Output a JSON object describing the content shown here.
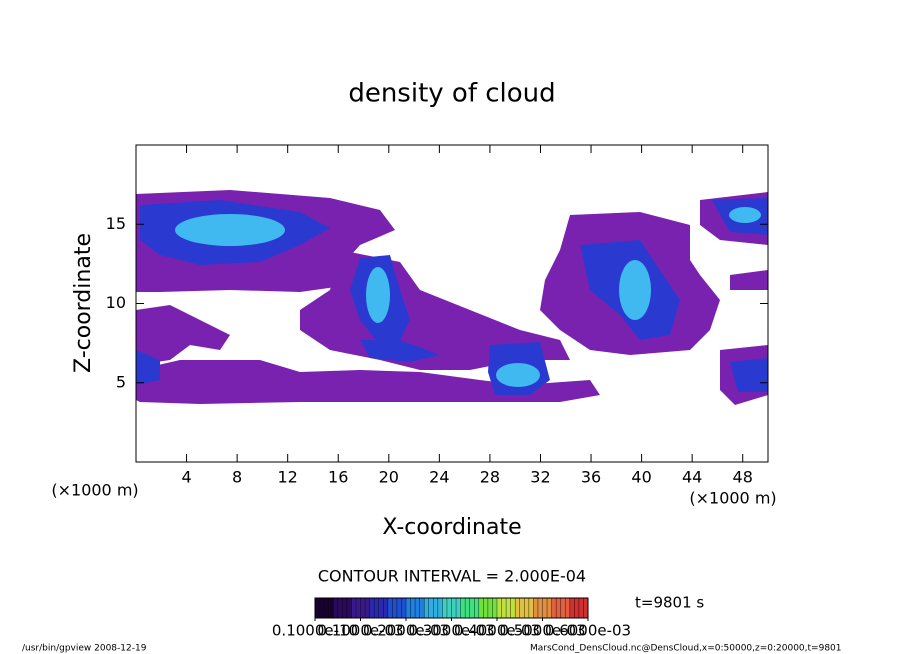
{
  "chart_data": {
    "type": "contour",
    "title": "density of cloud",
    "xlabel": "X-coordinate",
    "ylabel": "Z-coordinate",
    "xunit_left": "(×1000 m)",
    "xunit_right": "(×1000 m)",
    "xlim": [
      0,
      50
    ],
    "xticks": [
      4,
      8,
      12,
      16,
      20,
      24,
      28,
      32,
      36,
      40,
      44,
      48
    ],
    "ylim": [
      0,
      20
    ],
    "yticks": [
      5,
      10,
      15
    ],
    "contour_interval": "CONTOUR INTERVAL = 2.000E-04",
    "time_label": "t=9801 s",
    "colorbar": {
      "lim": [
        0,
        0.0006
      ],
      "colors": [
        "#1a0030",
        "#2a0a5a",
        "#3a1a8a",
        "#2a2ab0",
        "#2050d0",
        "#2080e0",
        "#30b0e0",
        "#40d0c0",
        "#40e080",
        "#70e040",
        "#c0e040",
        "#e0c040",
        "#e09040",
        "#e06040",
        "#d03030"
      ],
      "ticks": [
        {
          "value": 0,
          "label": "0.1000e-10"
        },
        {
          "value": 0.0001,
          "label": "0.1000e-03"
        },
        {
          "value": 0.0002,
          "label": "0.2000e-03"
        },
        {
          "value": 0.0003,
          "label": "0.3000e-03"
        },
        {
          "value": 0.0004,
          "label": "0.4000e-03"
        },
        {
          "value": 0.0005,
          "label": "0.5000e-03"
        },
        {
          "value": 0.0006,
          "label": "0.6000e-03"
        }
      ]
    },
    "footer_left": "/usr/bin/gpview  2008-12-19",
    "footer_right": "MarsCond_DensCloud.nc@DensCloud,x=0:50000,z=0:20000,t=9801"
  }
}
